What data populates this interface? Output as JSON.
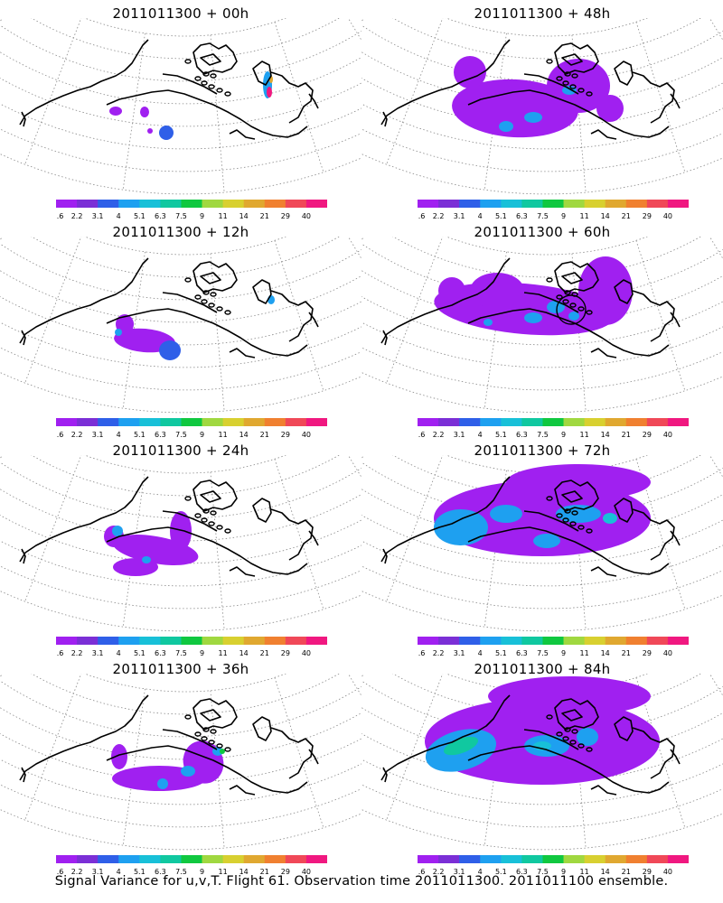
{
  "panels": [
    {
      "title": "2011011300 + 00h",
      "stage": 0
    },
    {
      "title": "2011011300 + 48h",
      "stage": 4
    },
    {
      "title": "2011011300 + 12h",
      "stage": 1
    },
    {
      "title": "2011011300 + 60h",
      "stage": 5
    },
    {
      "title": "2011011300 + 24h",
      "stage": 2
    },
    {
      "title": "2011011300 + 72h",
      "stage": 6
    },
    {
      "title": "2011011300 + 36h",
      "stage": 3
    },
    {
      "title": "2011011300 + 84h",
      "stage": 7
    }
  ],
  "colorbar": {
    "labels": [
      "1.6",
      "2.2",
      "3.1",
      "4",
      "5.1",
      "6.3",
      "7.5",
      "9",
      "11",
      "14",
      "21",
      "29",
      "40"
    ],
    "colors": [
      "#a020f0",
      "#7b2fd6",
      "#2f5fe8",
      "#1ea0f0",
      "#18c0d8",
      "#10c8a0",
      "#10c840",
      "#a0d840",
      "#d8d030",
      "#e0a830",
      "#f08030",
      "#f04858",
      "#f01880"
    ]
  },
  "caption": "Signal Variance for u,v,T. Flight 61. Observation time 2011011300. 2011011100 ensemble.",
  "colors": {
    "coast": "#000000",
    "grid": "#888888",
    "field_base": "#a020f0"
  }
}
